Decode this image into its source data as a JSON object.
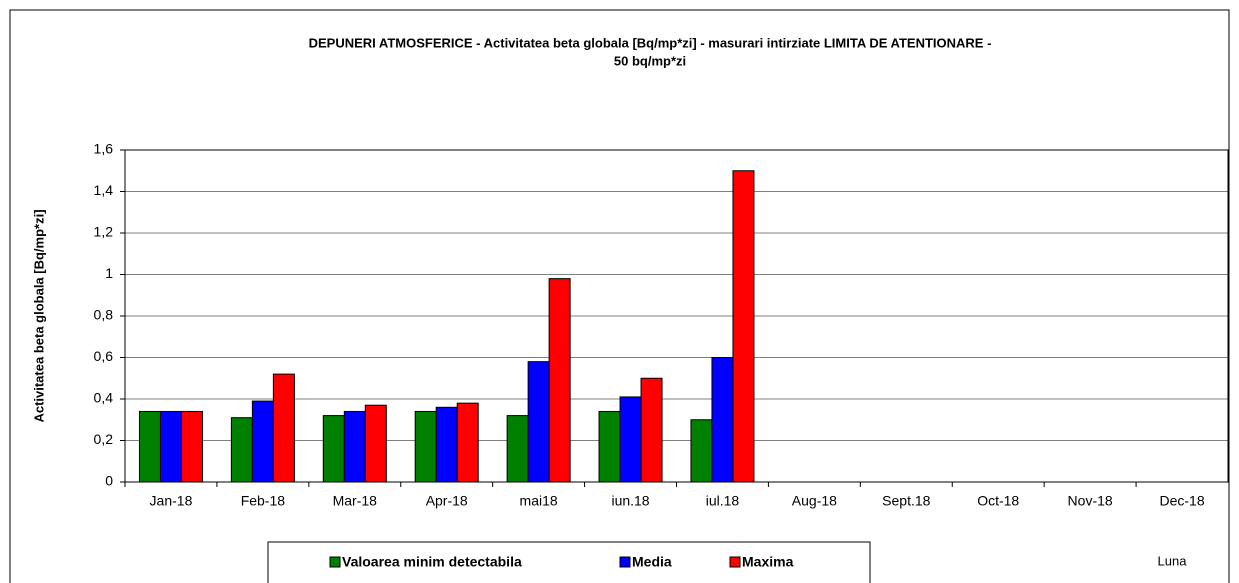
{
  "chart_data": {
    "type": "bar",
    "title": [
      "DEPUNERI ATMOSFERICE - Activitatea beta globala [Bq/mp*zi] - masurari intirziate  LIMITA DE ATENTIONARE -",
      "50 bq/mp*zi"
    ],
    "y_label": "Activitatea beta globala [Bq/mp*zi]",
    "x_label": "Luna",
    "categories": [
      "Jan-18",
      "Feb-18",
      "Mar-18",
      "Apr-18",
      "mai18",
      "iun.18",
      "iul.18",
      "Aug-18",
      "Sept.18",
      "Oct-18",
      "Nov-18",
      "Dec-18"
    ],
    "series": [
      {
        "name": "Valoarea minim detectabila",
        "color": "#008000",
        "values": [
          0.34,
          0.31,
          0.32,
          0.34,
          0.32,
          0.34,
          0.3,
          null,
          null,
          null,
          null,
          null
        ]
      },
      {
        "name": "Media",
        "color": "#0000ff",
        "values": [
          0.34,
          0.39,
          0.34,
          0.36,
          0.58,
          0.41,
          0.6,
          null,
          null,
          null,
          null,
          null
        ]
      },
      {
        "name": "Maxima",
        "color": "#ff0000",
        "values": [
          0.34,
          0.52,
          0.37,
          0.38,
          0.98,
          0.5,
          1.5,
          null,
          null,
          null,
          null,
          null
        ]
      }
    ],
    "ylim": [
      0,
      1.6
    ],
    "yticks": [
      0,
      {
        "value": 0.2,
        "label": "0,2"
      },
      {
        "value": 0.4,
        "label": "0,4"
      },
      {
        "value": 0.6,
        "label": "0,6"
      },
      {
        "value": 0.8,
        "label": "0,8"
      },
      1,
      {
        "value": 1.2,
        "label": "1,2"
      },
      {
        "value": 1.4,
        "label": "1,4"
      },
      {
        "value": 1.6,
        "label": "1,6"
      }
    ],
    "grid": true,
    "legend": "bottom"
  }
}
